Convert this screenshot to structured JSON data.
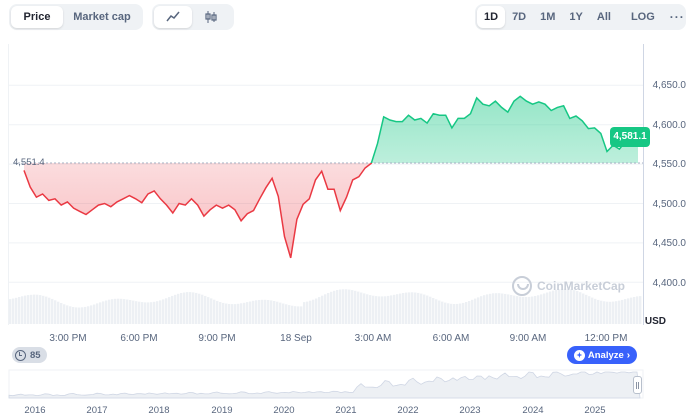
{
  "toolbar": {
    "price_tab": "Price",
    "market_cap_tab": "Market cap",
    "line_chart_toggle": "line-chart-icon",
    "candle_chart_toggle": "candlestick-icon",
    "ranges": [
      "1D",
      "7D",
      "1M",
      "1Y",
      "All"
    ],
    "active_range": "1D",
    "log_label": "LOG",
    "more_label": "···"
  },
  "chart": {
    "open_price_label": "4,551.4",
    "current_price_label": "4,581.1",
    "currency_label": "USD",
    "y_ticks": [
      "4,650.0",
      "4,600.0",
      "4,550.0",
      "4,500.0",
      "4,450.0",
      "4,400.0"
    ],
    "x_ticks": [
      "3:00 PM",
      "6:00 PM",
      "9:00 PM",
      "18 Sep",
      "3:00 AM",
      "6:00 AM",
      "9:00 AM",
      "12:00 PM"
    ],
    "watermark": "CoinMarketCap",
    "colors": {
      "up": "#16c784",
      "down": "#ea3943",
      "accent": "#3861fb"
    }
  },
  "chart_data": {
    "type": "line",
    "ylim": [
      4400,
      4660
    ],
    "baseline": 4551.4,
    "series": [
      {
        "values": [
          4542,
          4521,
          4508,
          4512,
          4504,
          4506,
          4498,
          4502,
          4494,
          4490,
          4486,
          4492,
          4498,
          4500,
          4496,
          4502,
          4506,
          4510,
          4506,
          4501,
          4512,
          4516,
          4506,
          4498,
          4488,
          4500,
          4498,
          4506,
          4498,
          4484,
          4492,
          4498,
          4494,
          4498,
          4492,
          4478,
          4487,
          4491,
          4506,
          4520,
          4532,
          4509,
          4458,
          4431,
          4480,
          4499,
          4506,
          4530,
          4541,
          4518,
          4518,
          4491,
          4508,
          4530,
          4534,
          4545,
          4551,
          4576,
          4610,
          4606,
          4604,
          4604,
          4612,
          4606,
          4608,
          4602,
          4614,
          4612,
          4612,
          4596,
          4608,
          4608,
          4614,
          4634,
          4626,
          4624,
          4630,
          4622,
          4616,
          4630,
          4636,
          4630,
          4626,
          4629,
          4626,
          4618,
          4622,
          4624,
          4608,
          4611,
          4605,
          4595,
          4596,
          4589,
          4566,
          4574,
          4569,
          4579,
          4576,
          4581
        ]
      }
    ]
  },
  "footer": {
    "comments_count": "85",
    "analyze_label": "Analyze",
    "years": [
      "2016",
      "2017",
      "2018",
      "2019",
      "2020",
      "2021",
      "2022",
      "2023",
      "2024",
      "2025"
    ]
  }
}
